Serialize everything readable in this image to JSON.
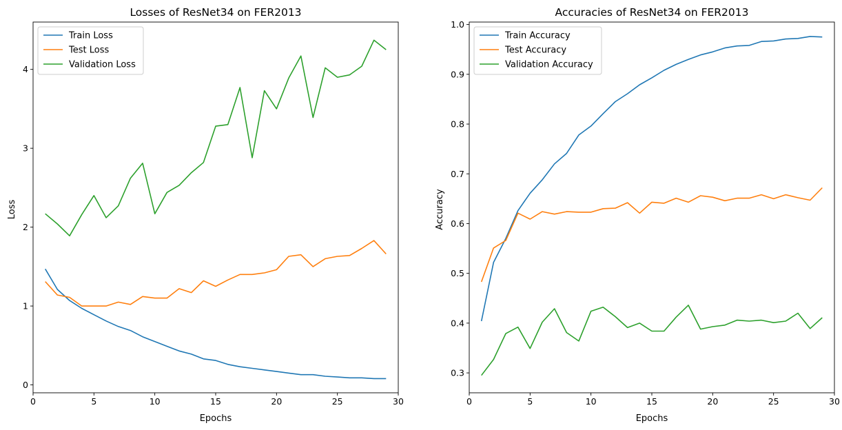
{
  "chart_data": [
    {
      "type": "line",
      "title": "Losses of ResNet34 on FER2013",
      "xlabel": "Epochs",
      "ylabel": "Loss",
      "xlim": [
        0,
        30
      ],
      "ylim": [
        -0.1,
        4.6
      ],
      "xticks": [
        0,
        5,
        10,
        15,
        20,
        25,
        30
      ],
      "yticks": [
        0,
        1,
        2,
        3,
        4
      ],
      "legend": "upper-left",
      "grid": false,
      "x": [
        1,
        2,
        3,
        4,
        5,
        6,
        7,
        8,
        9,
        10,
        11,
        12,
        13,
        14,
        15,
        16,
        17,
        18,
        19,
        20,
        21,
        22,
        23,
        24,
        25,
        26,
        27,
        28,
        29
      ],
      "series": [
        {
          "name": "Train Loss",
          "color": "#1f77b4",
          "values": [
            1.47,
            1.21,
            1.07,
            0.97,
            0.89,
            0.81,
            0.74,
            0.69,
            0.61,
            0.55,
            0.49,
            0.43,
            0.39,
            0.33,
            0.31,
            0.26,
            0.23,
            0.21,
            0.19,
            0.17,
            0.15,
            0.13,
            0.13,
            0.11,
            0.1,
            0.09,
            0.09,
            0.08,
            0.08
          ]
        },
        {
          "name": "Test Loss",
          "color": "#ff7f0e",
          "values": [
            1.31,
            1.14,
            1.11,
            1.0,
            1.0,
            1.0,
            1.05,
            1.02,
            1.12,
            1.1,
            1.1,
            1.22,
            1.17,
            1.32,
            1.25,
            1.33,
            1.4,
            1.4,
            1.42,
            1.46,
            1.63,
            1.65,
            1.5,
            1.6,
            1.63,
            1.64,
            1.73,
            1.83,
            1.66
          ]
        },
        {
          "name": "Validation Loss",
          "color": "#2ca02c",
          "values": [
            2.17,
            2.04,
            1.89,
            2.16,
            2.4,
            2.12,
            2.27,
            2.62,
            2.81,
            2.17,
            2.44,
            2.53,
            2.69,
            2.82,
            3.28,
            3.3,
            3.77,
            2.88,
            3.73,
            3.5,
            3.89,
            4.17,
            3.39,
            4.02,
            3.9,
            3.93,
            4.04,
            4.37,
            4.25
          ]
        }
      ]
    },
    {
      "type": "line",
      "title": "Accuracies of ResNet34 on FER2013",
      "xlabel": "Epochs",
      "ylabel": "Accuracy",
      "xlim": [
        0,
        30
      ],
      "ylim": [
        0.26,
        1.005
      ],
      "xticks": [
        0,
        5,
        10,
        15,
        20,
        25,
        30
      ],
      "yticks": [
        0.3,
        0.4,
        0.5,
        0.6,
        0.7,
        0.8,
        0.9,
        1.0
      ],
      "ytick_labels": [
        "0.3",
        "0.4",
        "0.5",
        "0.6",
        "0.7",
        "0.8",
        "0.9",
        "1.0"
      ],
      "legend": "upper-left",
      "grid": false,
      "x": [
        1,
        2,
        3,
        4,
        5,
        6,
        7,
        8,
        9,
        10,
        11,
        12,
        13,
        14,
        15,
        16,
        17,
        18,
        19,
        20,
        21,
        22,
        23,
        24,
        25,
        26,
        27,
        28,
        29
      ],
      "series": [
        {
          "name": "Train Accuracy",
          "color": "#1f77b4",
          "values": [
            0.404,
            0.522,
            0.57,
            0.626,
            0.661,
            0.688,
            0.72,
            0.741,
            0.778,
            0.796,
            0.821,
            0.845,
            0.861,
            0.879,
            0.893,
            0.908,
            0.92,
            0.93,
            0.939,
            0.945,
            0.953,
            0.957,
            0.958,
            0.966,
            0.967,
            0.971,
            0.972,
            0.976,
            0.975
          ]
        },
        {
          "name": "Test Accuracy",
          "color": "#ff7f0e",
          "values": [
            0.483,
            0.551,
            0.566,
            0.621,
            0.609,
            0.624,
            0.619,
            0.624,
            0.623,
            0.623,
            0.63,
            0.631,
            0.642,
            0.621,
            0.643,
            0.641,
            0.651,
            0.643,
            0.656,
            0.653,
            0.646,
            0.651,
            0.651,
            0.658,
            0.65,
            0.658,
            0.652,
            0.647,
            0.672
          ]
        },
        {
          "name": "Validation Accuracy",
          "color": "#2ca02c",
          "values": [
            0.295,
            0.327,
            0.379,
            0.392,
            0.349,
            0.402,
            0.429,
            0.381,
            0.364,
            0.424,
            0.432,
            0.413,
            0.391,
            0.4,
            0.384,
            0.384,
            0.412,
            0.436,
            0.388,
            0.393,
            0.396,
            0.406,
            0.404,
            0.406,
            0.401,
            0.404,
            0.42,
            0.389,
            0.411
          ]
        }
      ]
    }
  ]
}
